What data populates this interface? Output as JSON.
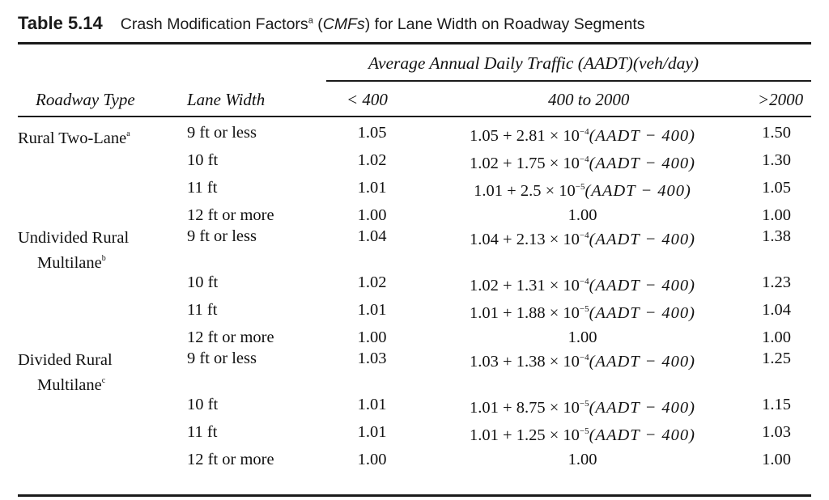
{
  "title": {
    "number": "Table 5.14",
    "caption_before": "Crash Modification Factors",
    "caption_sup": "a",
    "caption_abbr": "CMFs",
    "caption_after": "for Lane Width on Roadway Segments"
  },
  "header": {
    "group_label": "Average Annual Daily Traffic (AADT)(veh/day)",
    "roadway_type": "Roadway Type",
    "lane_width": "Lane Width",
    "col_low": "< 400",
    "col_mid": "400 to 2000",
    "col_high": ">2000"
  },
  "groups": [
    {
      "type_line1": "Rural Two-Lane",
      "type_line2": "",
      "type_sup": "a",
      "rows": [
        {
          "width": "9 ft or less",
          "low": "1.05",
          "mid": {
            "base": "1.05 + 2.81 × 10",
            "exp": "−4",
            "tail": "(AADT − 400)"
          },
          "high": "1.50"
        },
        {
          "width": "10 ft",
          "low": "1.02",
          "mid": {
            "base": "1.02 + 1.75 × 10",
            "exp": "−4",
            "tail": "(AADT − 400)"
          },
          "high": "1.30"
        },
        {
          "width": "11 ft",
          "low": "1.01",
          "mid": {
            "base": "1.01 + 2.5 × 10",
            "exp": "−5",
            "tail": "(AADT − 400)"
          },
          "high": "1.05"
        },
        {
          "width": "12 ft or more",
          "low": "1.00",
          "mid": {
            "base": "1.00",
            "exp": "",
            "tail": ""
          },
          "high": "1.00"
        }
      ]
    },
    {
      "type_line1": "Undivided Rural",
      "type_line2": "Multilane",
      "type_sup": "b",
      "rows": [
        {
          "width": "9 ft or less",
          "low": "1.04",
          "mid": {
            "base": "1.04 + 2.13 × 10",
            "exp": "−4",
            "tail": "(AADT − 400)"
          },
          "high": "1.38"
        },
        {
          "width": "10 ft",
          "low": "1.02",
          "mid": {
            "base": "1.02 + 1.31 × 10",
            "exp": "−4",
            "tail": "(AADT − 400)"
          },
          "high": "1.23"
        },
        {
          "width": "11 ft",
          "low": "1.01",
          "mid": {
            "base": "1.01 + 1.88 × 10",
            "exp": "−5",
            "tail": "(AADT − 400)"
          },
          "high": "1.04"
        },
        {
          "width": "12 ft or more",
          "low": "1.00",
          "mid": {
            "base": "1.00",
            "exp": "",
            "tail": ""
          },
          "high": "1.00"
        }
      ]
    },
    {
      "type_line1": "Divided Rural",
      "type_line2": "Multilane",
      "type_sup": "c",
      "rows": [
        {
          "width": "9 ft or less",
          "low": "1.03",
          "mid": {
            "base": "1.03 + 1.38 × 10",
            "exp": "−4",
            "tail": "(AADT − 400)"
          },
          "high": "1.25"
        },
        {
          "width": "10 ft",
          "low": "1.01",
          "mid": {
            "base": "1.01 + 8.75 × 10",
            "exp": "−5",
            "tail": "(AADT − 400)"
          },
          "high": "1.15"
        },
        {
          "width": "11 ft",
          "low": "1.01",
          "mid": {
            "base": "1.01 + 1.25 × 10",
            "exp": "−5",
            "tail": "(AADT − 400)"
          },
          "high": "1.03"
        },
        {
          "width": "12 ft or more",
          "low": "1.00",
          "mid": {
            "base": "1.00",
            "exp": "",
            "tail": ""
          },
          "high": "1.00"
        }
      ]
    }
  ]
}
